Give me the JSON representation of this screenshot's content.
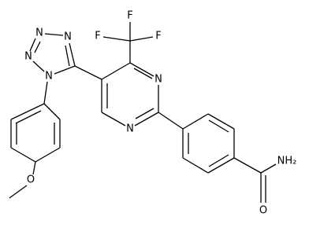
{
  "atoms": [
    "F",
    "F",
    "F",
    "N",
    "N",
    "N",
    "N",
    "N",
    "N",
    "NH₂",
    "O",
    "O"
  ]
}
